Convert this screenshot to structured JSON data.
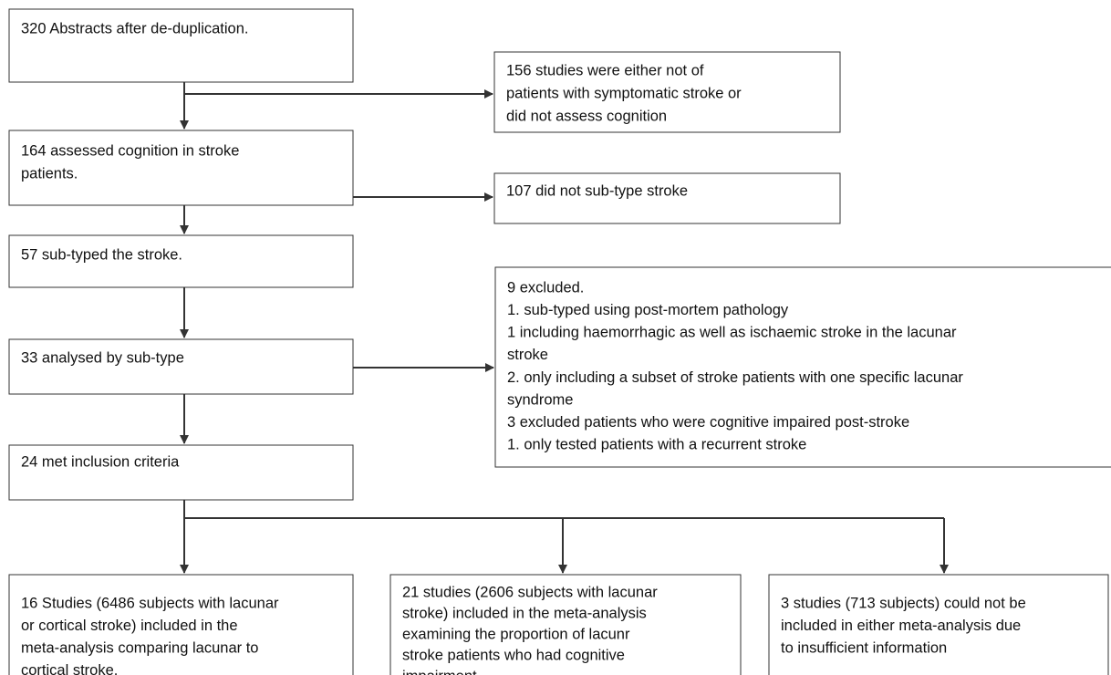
{
  "nodes": [
    {
      "lines": [
        "320 Abstracts after de-duplication."
      ]
    },
    {
      "lines": [
        "156 studies were either not of",
        "patients with symptomatic stroke or",
        "did not assess cognition"
      ]
    },
    {
      "lines": [
        "164 assessed cognition in stroke",
        "patients."
      ]
    },
    {
      "lines": [
        "107 did not sub-type stroke"
      ]
    },
    {
      "lines": [
        "57 sub-typed the stroke."
      ]
    },
    {
      "lines": [
        "9 excluded.",
        "1. sub-typed using post-mortem pathology",
        "1 including haemorrhagic as well as ischaemic stroke in the  lacunar",
        "stroke",
        "2. only including a subset of stroke patients with one specific lacunar",
        "syndrome",
        "3 excluded patients who were cognitive impaired post-stroke",
        "1. only tested patients with a recurrent stroke"
      ]
    },
    {
      "lines": [
        "33 analysed by sub-type"
      ]
    },
    {
      "lines": [
        "24 met inclusion criteria"
      ]
    },
    {
      "lines": [
        "16 Studies (6486 subjects with lacunar",
        "or cortical stroke) included in the",
        "meta-analysis comparing lacunar to",
        "cortical stroke."
      ]
    },
    {
      "lines": [
        "21 studies (2606 subjects with lacunar",
        "stroke) included in the meta-analysis",
        "examining the proportion of lacunr",
        "stroke patients who had cognitive",
        "impairment."
      ]
    },
    {
      "lines": [
        "3 studies (713 subjects) could not be",
        "included in either meta-analysis due",
        "to insufficient information"
      ]
    }
  ]
}
